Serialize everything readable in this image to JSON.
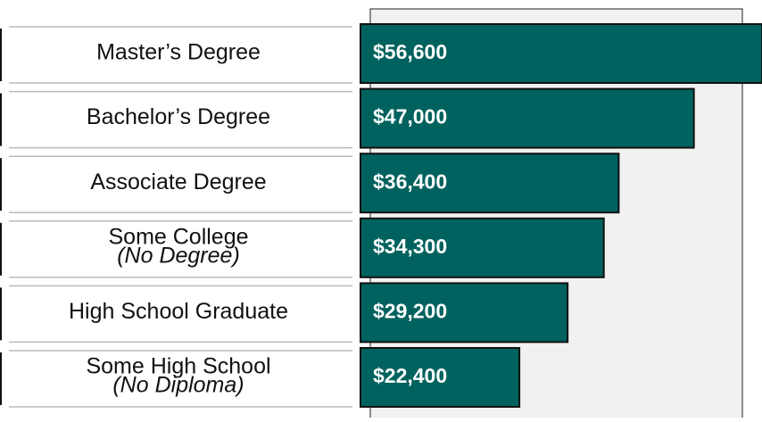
{
  "chart_data": {
    "type": "hbar",
    "categories": [
      "Master’s Degree",
      "Bachelor’s Degree",
      "Associate Degree",
      "Some College",
      "High School Graduate",
      "Some High School"
    ],
    "category_notes": [
      null,
      null,
      null,
      "(No Degree)",
      null,
      "(No Diploma)"
    ],
    "values": [
      56600,
      47000,
      36400,
      34300,
      29200,
      22400
    ],
    "value_labels": [
      "$56,600",
      "$47,000",
      "$36,400",
      "$34,300",
      "$29,200",
      "$22,400"
    ],
    "color": "#00625e"
  }
}
